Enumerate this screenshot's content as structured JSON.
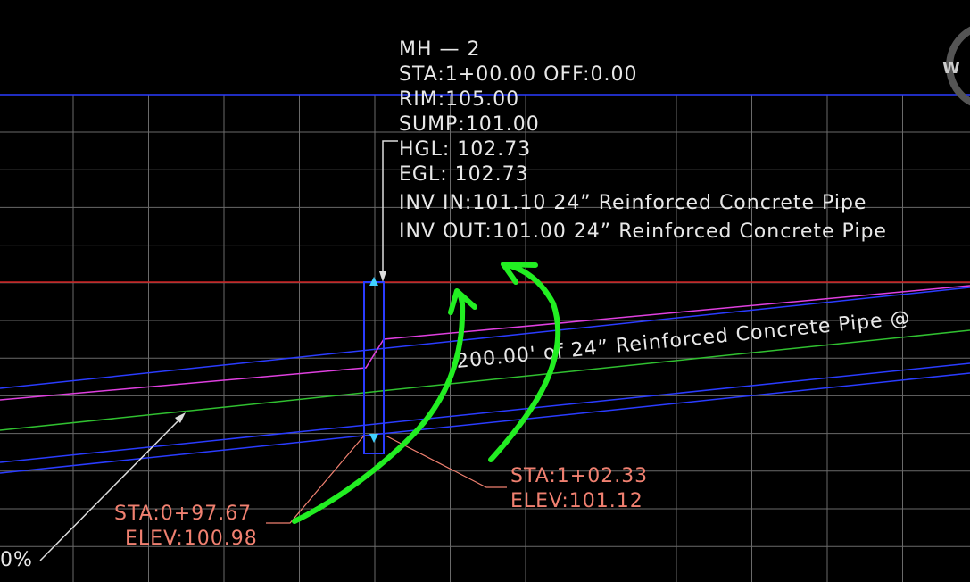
{
  "structure_label": {
    "lines": [
      "MH — 2",
      "STA:1+00.00  OFF:0.00",
      "RIM:105.00",
      "SUMP:101.00",
      "HGL:  102.73",
      "EGL:  102.73",
      "INV IN:101.10  24” Reinforced Concrete Pipe",
      "INV OUT:101.00  24” Reinforced Concrete Pipe"
    ]
  },
  "pipe_label": "200.00' of 24” Reinforced Concrete Pipe @",
  "left_station": {
    "sta": "STA:0+97.67",
    "elev": "ELEV:100.98"
  },
  "right_station": {
    "sta": "STA:1+02.33",
    "elev": "ELEV:101.12"
  },
  "slope_label": "0%",
  "viewcube": "W"
}
